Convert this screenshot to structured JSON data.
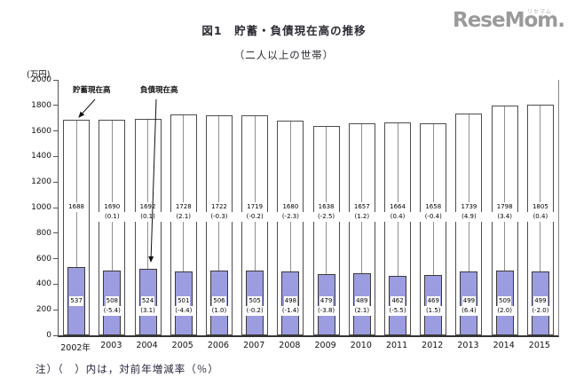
{
  "logo": {
    "text": "ReseMom.",
    "ruby": "リセマム"
  },
  "header": {
    "title": "図1　貯蓄・負債現在高の推移",
    "subtitle": "（二人以上の世帯）"
  },
  "note": "注）（　）内は，対前年増減率（％）",
  "chart_data": {
    "type": "bar",
    "title": "貯蓄・負債現在高の推移（二人以上の世帯）",
    "unit_label": "(万円)",
    "ylim": [
      0,
      2000
    ],
    "y_tick_step": 200,
    "grid": false,
    "legend_position": "annotations-inside-plot",
    "categories": [
      "2002年",
      "2003",
      "2004",
      "2005",
      "2006",
      "2007",
      "2008",
      "2009",
      "2010",
      "2011",
      "2012",
      "2013",
      "2014",
      "2015"
    ],
    "series": [
      {
        "name": "貯蓄現在高",
        "color": "#ffffff",
        "values": [
          1688,
          1690,
          1692,
          1728,
          1722,
          1719,
          1680,
          1638,
          1657,
          1664,
          1658,
          1739,
          1798,
          1805
        ],
        "pct_labels": [
          "",
          "(0.1)",
          "(0.1)",
          "(2.1)",
          "(-0.3)",
          "(-0.2)",
          "(-2.3)",
          "(-2.5)",
          "(1.2)",
          "(0.4)",
          "(-0.4)",
          "(4.9)",
          "(3.4)",
          "(0.4)"
        ]
      },
      {
        "name": "負債現在高",
        "color": "#9c9ce0",
        "values": [
          537,
          508,
          524,
          501,
          506,
          505,
          498,
          479,
          489,
          462,
          469,
          499,
          509,
          499
        ],
        "pct_labels": [
          "",
          "(-5.4)",
          "(3.1)",
          "(-4.4)",
          "(1.0)",
          "(-0.2)",
          "(-1.4)",
          "(-3.8)",
          "(2.1)",
          "(-5.5)",
          "(1.5)",
          "(6.4)",
          "(2.0)",
          "(-2.0)"
        ]
      }
    ]
  }
}
